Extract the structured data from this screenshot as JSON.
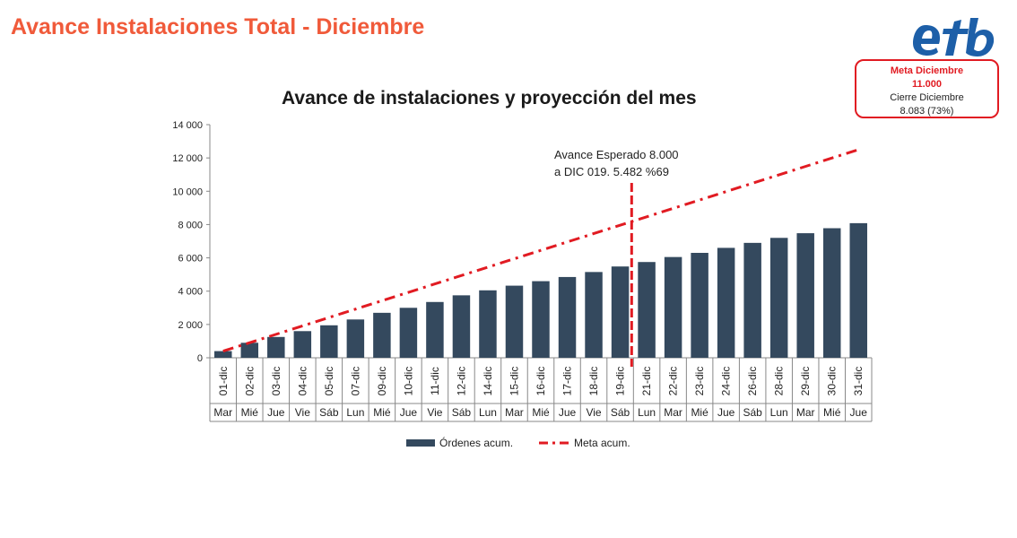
{
  "header": {
    "title": "Avance Instalaciones Total - Diciembre"
  },
  "logo": {
    "text": "eTb",
    "color": "#1d5fa8"
  },
  "meta_box": {
    "line1": "Meta Diciembre",
    "line2": "11.000",
    "line3": "Cierre Diciembre",
    "line4": "8.083 (73%)",
    "border_color": "#e11b22"
  },
  "chart_data": {
    "type": "bar",
    "title": "Avance de instalaciones y proyección del mes",
    "xlabel": "",
    "ylabel": "",
    "ylim": [
      0,
      14000
    ],
    "yticks": [
      0,
      2000,
      4000,
      6000,
      8000,
      10000,
      12000,
      14000
    ],
    "ytick_labels": [
      "0",
      "2 000",
      "4 000",
      "6 000",
      "8 000",
      "10 000",
      "12 000",
      "14 000"
    ],
    "categories": [
      "01-dic",
      "02-dic",
      "03-dic",
      "04-dic",
      "05-dic",
      "07-dic",
      "09-dic",
      "10-dic",
      "11-dic",
      "12-dic",
      "14-dic",
      "15-dic",
      "16-dic",
      "17-dic",
      "18-dic",
      "19-dic",
      "21-dic",
      "22-dic",
      "23-dic",
      "24-dic",
      "26-dic",
      "28-dic",
      "29-dic",
      "30-dic",
      "31-dic"
    ],
    "weekdays": [
      "Mar",
      "Mié",
      "Jue",
      "Vie",
      "Sáb",
      "Lun",
      "Mié",
      "Jue",
      "Vie",
      "Sáb",
      "Lun",
      "Mar",
      "Mié",
      "Jue",
      "Vie",
      "Sáb",
      "Lun",
      "Mar",
      "Mié",
      "Jue",
      "Sáb",
      "Lun",
      "Mar",
      "Mié",
      "Jue"
    ],
    "series": [
      {
        "name": "Órdenes acum.",
        "kind": "bar",
        "color": "#34495e",
        "values": [
          400,
          900,
          1250,
          1600,
          1950,
          2300,
          2700,
          3000,
          3350,
          3750,
          4050,
          4330,
          4600,
          4850,
          5150,
          5482,
          5750,
          6050,
          6300,
          6600,
          6900,
          7200,
          7480,
          7780,
          8083
        ]
      },
      {
        "name": "Meta acum.",
        "kind": "line",
        "color": "#e11b22",
        "start": 400,
        "end": 12500
      }
    ],
    "marker": {
      "after_category": "19-dic",
      "color": "#e11b22",
      "top_value": 10500
    },
    "annotation": {
      "line1": "Avance Esperado 8.000",
      "line2": "a DIC 019. 5.482 %69"
    },
    "legend": {
      "position": "bottom"
    },
    "grid": false
  }
}
